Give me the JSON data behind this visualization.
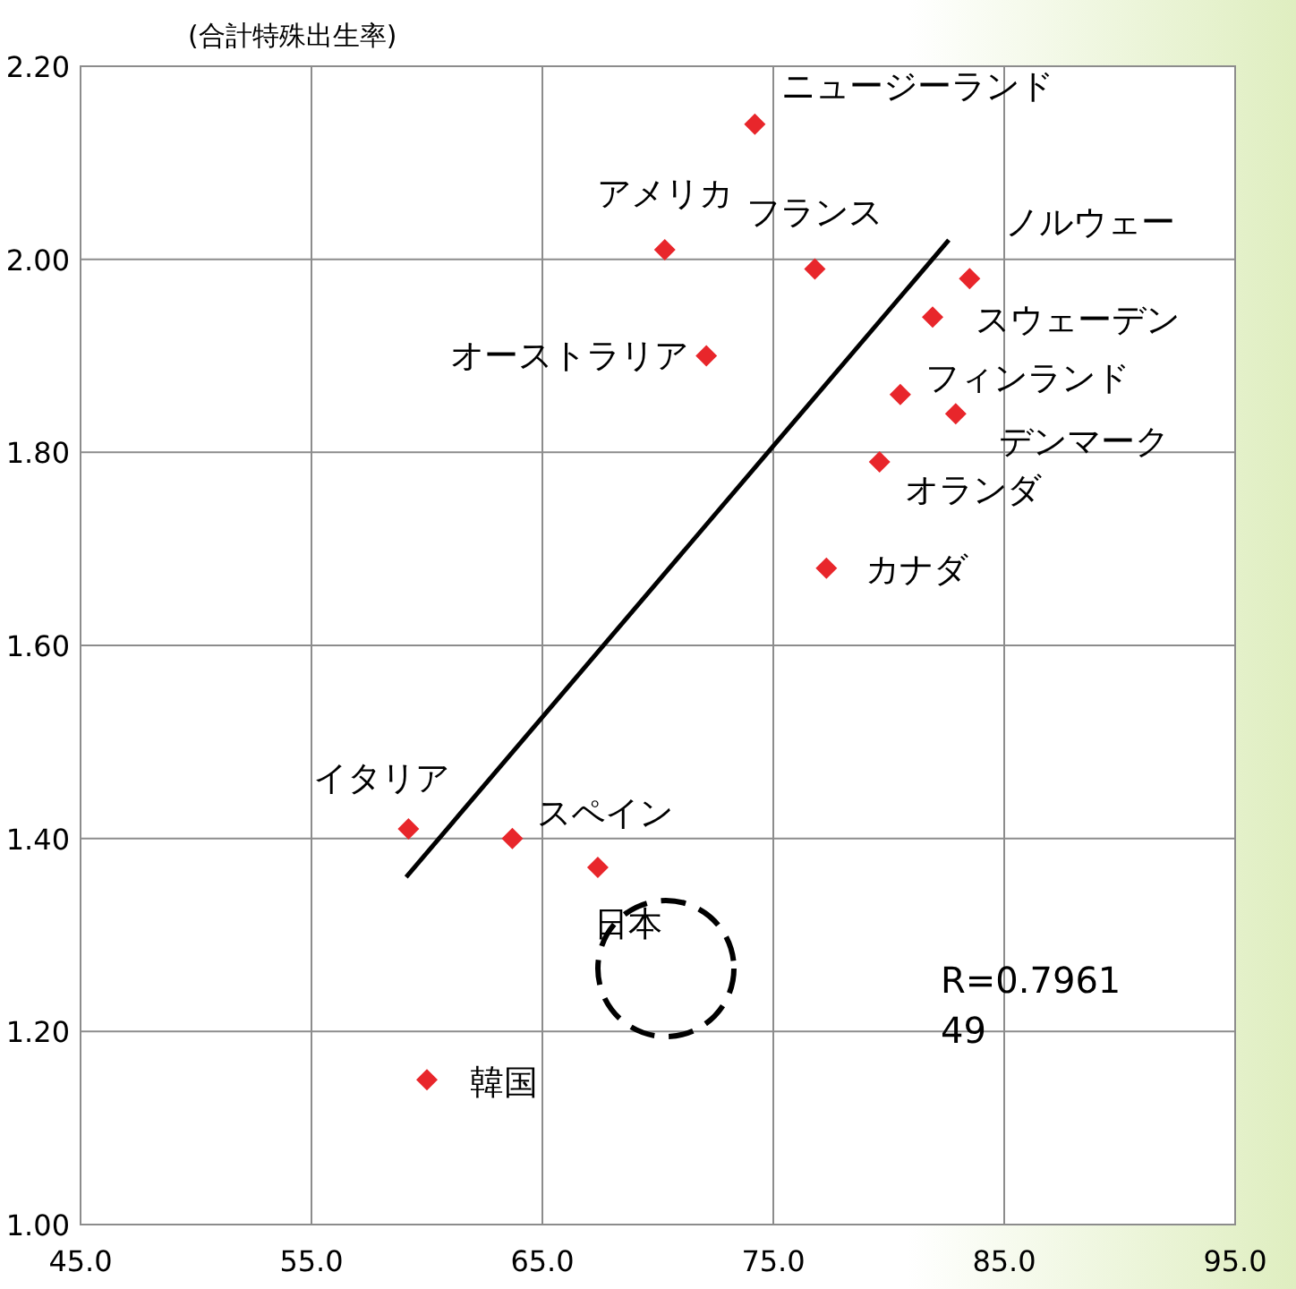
{
  "chart_data": {
    "type": "scatter",
    "ylabel": "(合計特殊出生率)",
    "xlim": [
      45,
      95
    ],
    "xticks": [
      {
        "value": 45,
        "label": "45.0"
      },
      {
        "value": 55,
        "label": "55.0"
      },
      {
        "value": 65,
        "label": "65.0"
      },
      {
        "value": 75,
        "label": "75.0"
      },
      {
        "value": 85,
        "label": "85.0"
      },
      {
        "value": 95,
        "label": "95.0"
      }
    ],
    "ylim": [
      1,
      2.2
    ],
    "yticks": [
      {
        "value": 1,
        "label": "1.00"
      },
      {
        "value": 1.2,
        "label": "1.20"
      },
      {
        "value": 1.4,
        "label": "1.40"
      },
      {
        "value": 1.6,
        "label": "1.60"
      },
      {
        "value": 1.8,
        "label": "1.80"
      },
      {
        "value": 2,
        "label": "2.00"
      },
      {
        "value": 2.2,
        "label": "2.20"
      }
    ],
    "grid": true,
    "marker": "diamond",
    "series": [
      {
        "color": "#e8262b",
        "x": [
          74.2,
          70.3,
          76.8,
          72.1,
          83.5,
          81.9,
          80.5,
          82.9,
          79.6,
          77.3,
          59.2,
          63.7,
          67.4,
          60.0
        ],
        "values": [
          2.14,
          2.01,
          1.99,
          1.9,
          1.98,
          1.94,
          1.86,
          1.84,
          1.79,
          1.68,
          1.41,
          1.4,
          1.37,
          1.15
        ]
      },
      {
        "type": "line",
        "color": "#000000",
        "marker": "none",
        "x": [
          59.1,
          82.6
        ],
        "values": [
          1.36,
          2.02
        ]
      }
    ],
    "annotations": [
      {
        "text": "ニュージーランド",
        "x": 74.2,
        "y": 2.14
      },
      {
        "text": "アメリカ",
        "x": 70.3,
        "y": 2.01
      },
      {
        "text": "フランス",
        "x": 76.8,
        "y": 1.99
      },
      {
        "text": "オーストラリア",
        "x": 72.1,
        "y": 1.9
      },
      {
        "text": "ノルウェー",
        "x": 83.5,
        "y": 1.98
      },
      {
        "text": "スウェーデン",
        "x": 81.9,
        "y": 1.94
      },
      {
        "text": "フィンランド",
        "x": 80.5,
        "y": 1.86
      },
      {
        "text": "デンマーク",
        "x": 82.9,
        "y": 1.84
      },
      {
        "text": "オランダ",
        "x": 79.6,
        "y": 1.79
      },
      {
        "text": "カナダ",
        "x": 77.3,
        "y": 1.68
      },
      {
        "text": "イタリア",
        "x": 59.2,
        "y": 1.41
      },
      {
        "text": "スペイン",
        "x": 63.7,
        "y": 1.4
      },
      {
        "text": "日本",
        "x": 67.4,
        "y": 1.37
      },
      {
        "text": "韓国",
        "x": 60.0,
        "y": 1.15
      },
      "R=0.796149"
    ]
  }
}
